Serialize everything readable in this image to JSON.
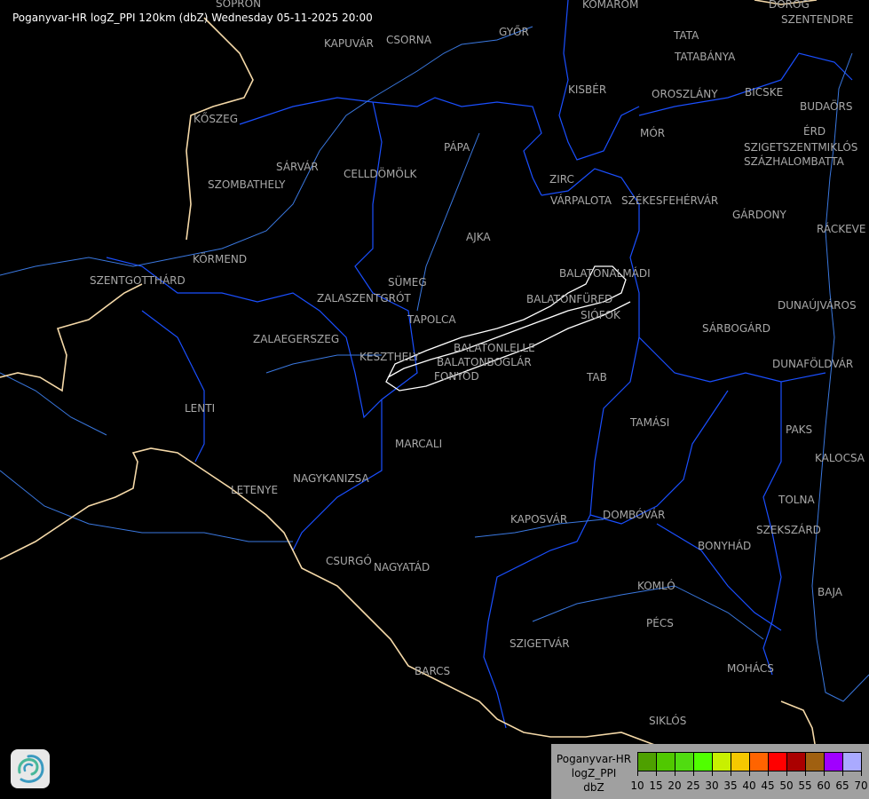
{
  "title": "Poganyvar-HR logZ_PPI 120km (dbZ) Wednesday 05-11-2025 20:00",
  "cities": [
    "SOPRON",
    "GYŐR",
    "KOMÁROM",
    "DOROG",
    "SZENTENDRE",
    "KAPUVÁR",
    "CSORNA",
    "TATA",
    "TATABÁNYA",
    "KISBÉR",
    "OROSZLÁNY",
    "BICSKE",
    "KŐSZEG",
    "BUDAÖRS",
    "MÓR",
    "ÉRD",
    "SZIGETSZENTMIKLÓS",
    "SZÁZHALOMBATTA",
    "PÁPA",
    "SÁRVÁR",
    "CELLDÖMÖLK",
    "SZOMBATHELY",
    "ZIRC",
    "VÁRPALOTA",
    "SZÉKESFEHÉRVÁR",
    "GÁRDONY",
    "RÁCKEVE",
    "AJKA",
    "KÖRMEND",
    "BALATONALMÁDI",
    "SZENTGOTTHÁRD",
    "SÜMEG",
    "ZALASZENTGRÓT",
    "BALATONFÜRED",
    "SIÓFOK",
    "DUNAÚJVÁROS",
    "TAPOLCA",
    "SÁRBOGÁRD",
    "ZALAEGERSZEG",
    "BALATONLELLE",
    "BALATONBOGLÁR",
    "KESZTHELY",
    "DUNAFÖLDVÁR",
    "FONYÓD",
    "TAB",
    "LENTI",
    "TAMÁSI",
    "PAKS",
    "MARCALI",
    "KALOCSA",
    "NAGYKANIZSA",
    "LETENYE",
    "TOLNA",
    "KAPOSVÁR",
    "DOMBÓVÁR",
    "SZEKSZÁRD",
    "BONYHÁD",
    "CSURGÓ",
    "NAGYATÁD",
    "KOMLÓ",
    "BAJA",
    "PÉCS",
    "SZIGETVÁR",
    "MOHÁCS",
    "BARCS",
    "SIKLÓS"
  ],
  "legend": {
    "station": "Poganyvar-HR",
    "product": "logZ_PPI",
    "unit": "dbZ",
    "ticks": [
      "10",
      "15",
      "20",
      "25",
      "30",
      "35",
      "40",
      "45",
      "50",
      "55",
      "60",
      "65",
      "70"
    ],
    "colors": [
      "#4ea000",
      "#50c800",
      "#50dc10",
      "#50ff00",
      "#c8f000",
      "#f5c800",
      "#ff6400",
      "#ff0000",
      "#aa0000",
      "#a06010",
      "#a000ff",
      "#aaaaff"
    ]
  },
  "logo_icon": "weather-service-swirl-logo"
}
